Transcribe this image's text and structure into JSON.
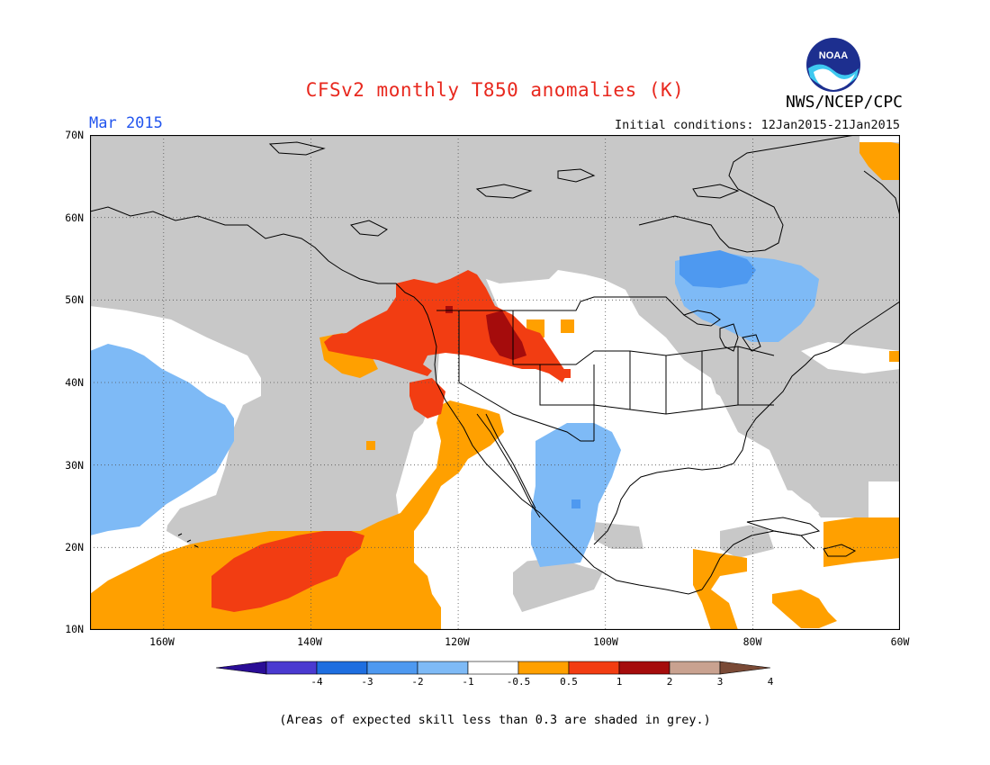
{
  "header": {
    "title": "CFSv2 monthly T850 anomalies (K)",
    "month": "Mar 2015",
    "organization": "NWS/NCEP/CPC",
    "initial_conditions": "Initial conditions: 12Jan2015-21Jan2015",
    "logo_text": "NOAA"
  },
  "map": {
    "lat_labels": [
      "70N",
      "60N",
      "50N",
      "40N",
      "30N",
      "20N",
      "10N"
    ],
    "lon_labels": [
      "160W",
      "140W",
      "120W",
      "100W",
      "80W",
      "60W"
    ],
    "colors": {
      "grey_low_skill": "#c8c8c8",
      "neutral": "#ffffff",
      "land_outline": "#000000",
      "grid": "#555555"
    }
  },
  "colorbar": {
    "levels": [
      "-4",
      "-3",
      "-2",
      "-1",
      "-0.5",
      "0.5",
      "1",
      "2",
      "3",
      "4"
    ],
    "colors": [
      "#2a0d96",
      "#4a3ad0",
      "#1e6ee0",
      "#4e99f0",
      "#7ebaf6",
      "#ffffff",
      "#ffa000",
      "#f23d12",
      "#a50c0c",
      "#c9a290",
      "#7a4a36"
    ]
  },
  "footer": {
    "note": "(Areas of expected skill less than 0.3 are shaded in grey.)"
  }
}
